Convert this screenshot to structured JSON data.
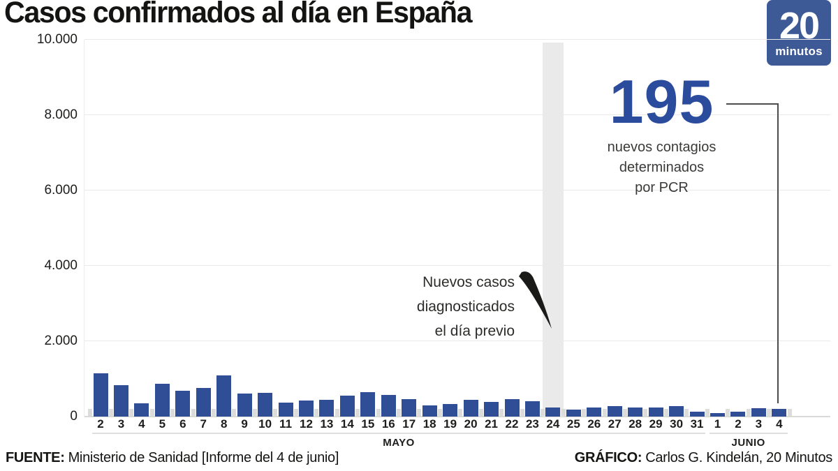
{
  "title": "Casos confirmados al día en España",
  "logo": {
    "number": "20",
    "word": "minutos",
    "color": "#3d5a97"
  },
  "annotations": {
    "value_callout": {
      "value": "195",
      "color": "#2b4b9d",
      "caption_lines": [
        "nuevos contagios",
        "determinados",
        "por PCR"
      ]
    },
    "band_note_lines": [
      "Nuevos casos",
      "diagnosticados",
      "el día previo"
    ]
  },
  "footer": {
    "source_label": "FUENTE:",
    "source_text": "Ministerio de Sanidad [Informe del 4 de junio]",
    "credit_label": "GRÁFICO:",
    "credit_text": "Carlos G. Kindelán, 20 Minutos"
  },
  "chart_data": {
    "type": "bar",
    "title": "Casos confirmados al día en España",
    "xlabel": "",
    "ylabel": "",
    "ylim": [
      0,
      10000
    ],
    "grid": true,
    "legend": false,
    "ytick_labels": [
      "10.000",
      "8.000",
      "6.000",
      "4.000",
      "2.000",
      "0"
    ],
    "ytick_values": [
      10000,
      8000,
      6000,
      4000,
      2000,
      0
    ],
    "categories": [
      "2",
      "3",
      "4",
      "5",
      "6",
      "7",
      "8",
      "9",
      "10",
      "11",
      "12",
      "13",
      "14",
      "15",
      "16",
      "17",
      "18",
      "19",
      "20",
      "21",
      "22",
      "23",
      "24",
      "25",
      "26",
      "27",
      "28",
      "29",
      "30",
      "31",
      "1",
      "2",
      "3",
      "4"
    ],
    "month_groups": [
      {
        "label": "MAYO",
        "from": 0,
        "to": 29
      },
      {
        "label": "JUNIO",
        "from": 30,
        "to": 33
      }
    ],
    "values": [
      1147,
      838,
      356,
      867,
      685,
      754,
      1095,
      604,
      621,
      373,
      426,
      439,
      549,
      643,
      580,
      467,
      295,
      331,
      446,
      392,
      466,
      411,
      246,
      187,
      237,
      274,
      237,
      248,
      271,
      125,
      88,
      137,
      219,
      195
    ],
    "highlight_index": 22,
    "callout_index": 33,
    "callout_value": 195,
    "bar_color": "#2f4e96",
    "highlight_band_color": "#e9eae9"
  }
}
